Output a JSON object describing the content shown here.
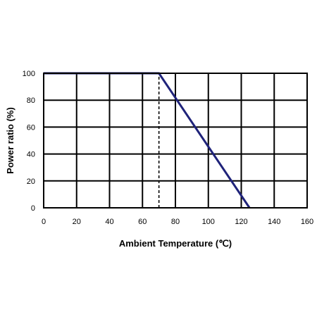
{
  "chart_data": {
    "type": "line",
    "title": "",
    "xlabel": "Ambient Temperature (℃)",
    "ylabel": "Power ratio (%)",
    "xlim": [
      0,
      160
    ],
    "ylim": [
      0,
      100
    ],
    "x_ticks": [
      "0",
      "20",
      "40",
      "60",
      "80",
      "100",
      "120",
      "140",
      "160"
    ],
    "y_ticks": [
      "0",
      "20",
      "40",
      "60",
      "80",
      "100"
    ],
    "grid": true,
    "legend": "none",
    "series": [
      {
        "color": "#1f237a",
        "style": "solid",
        "points": [
          [
            0,
            100
          ],
          [
            70,
            100
          ],
          [
            125,
            0
          ]
        ]
      }
    ],
    "reference_lines": [
      {
        "x": 70,
        "y_from": 0,
        "y_to": 100,
        "style": "dashed",
        "color": "#000000"
      }
    ]
  }
}
